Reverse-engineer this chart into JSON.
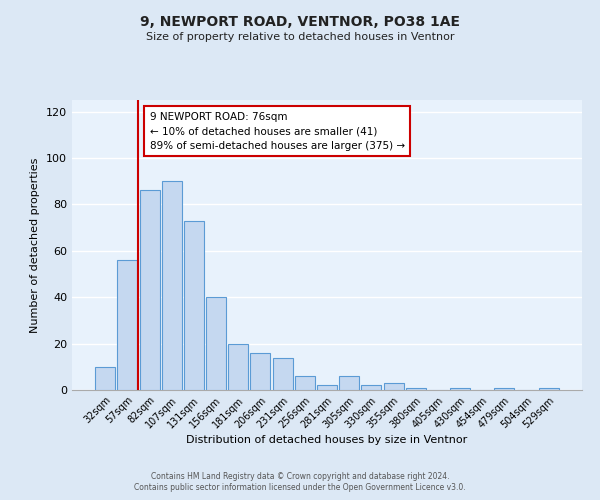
{
  "title": "9, NEWPORT ROAD, VENTNOR, PO38 1AE",
  "subtitle": "Size of property relative to detached houses in Ventnor",
  "xlabel": "Distribution of detached houses by size in Ventnor",
  "ylabel": "Number of detached properties",
  "bar_labels": [
    "32sqm",
    "57sqm",
    "82sqm",
    "107sqm",
    "131sqm",
    "156sqm",
    "181sqm",
    "206sqm",
    "231sqm",
    "256sqm",
    "281sqm",
    "305sqm",
    "330sqm",
    "355sqm",
    "380sqm",
    "405sqm",
    "430sqm",
    "454sqm",
    "479sqm",
    "504sqm",
    "529sqm"
  ],
  "bar_values": [
    10,
    56,
    86,
    90,
    73,
    40,
    20,
    16,
    14,
    6,
    2,
    6,
    2,
    3,
    1,
    0,
    1,
    0,
    1,
    0,
    1
  ],
  "bar_color": "#c5d8f0",
  "bar_edge_color": "#5b9bd5",
  "vline_color": "#cc0000",
  "annotation_text": "9 NEWPORT ROAD: 76sqm\n← 10% of detached houses are smaller (41)\n89% of semi-detached houses are larger (375) →",
  "annotation_box_color": "#ffffff",
  "annotation_box_edge": "#cc0000",
  "ylim": [
    0,
    125
  ],
  "yticks": [
    0,
    20,
    40,
    60,
    80,
    100,
    120
  ],
  "footer_line1": "Contains HM Land Registry data © Crown copyright and database right 2024.",
  "footer_line2": "Contains public sector information licensed under the Open Government Licence v3.0.",
  "bg_color": "#dce8f5",
  "plot_bg_color": "#e8f2fc"
}
